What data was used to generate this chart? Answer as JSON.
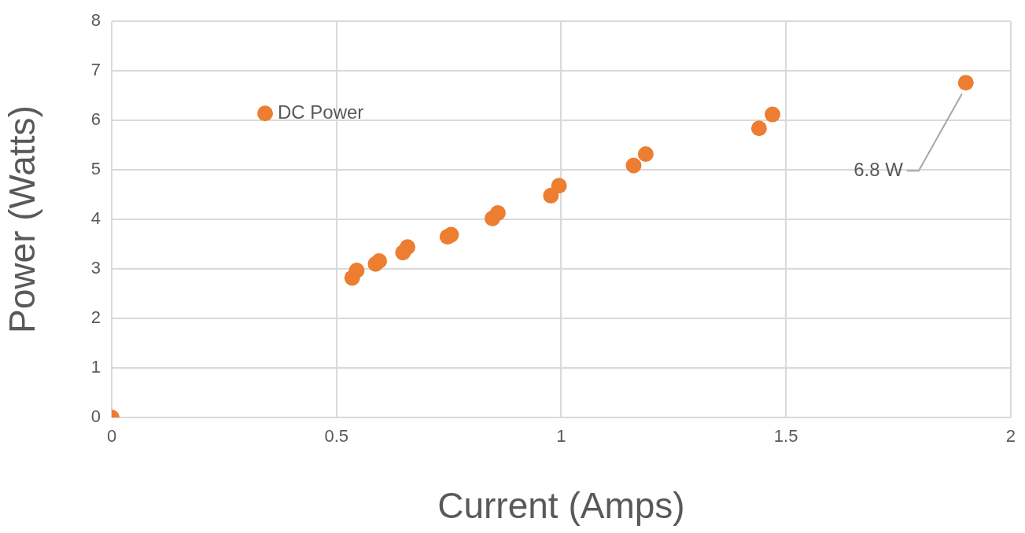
{
  "chart_data": {
    "type": "scatter",
    "xlabel": "Current (Amps)",
    "ylabel": "Power (Watts)",
    "xlim": [
      0,
      2
    ],
    "xticks": [
      0,
      0.5,
      1,
      1.5,
      2
    ],
    "ylim": [
      0,
      8
    ],
    "yticks": [
      0,
      1,
      2,
      3,
      4,
      5,
      6,
      7,
      8
    ],
    "grid": true,
    "legend": "top left",
    "marker": "circle",
    "series": [
      {
        "name": "DC Power",
        "color": "#ed7d31",
        "x": [
          0,
          0.535,
          0.545,
          0.587,
          0.595,
          0.648,
          0.658,
          0.747,
          0.755,
          0.847,
          0.859,
          0.977,
          0.995,
          1.161,
          1.188,
          1.44,
          1.47,
          1.9
        ],
        "values": [
          0,
          2.82,
          2.97,
          3.1,
          3.16,
          3.33,
          3.44,
          3.65,
          3.69,
          4.02,
          4.13,
          4.48,
          4.68,
          5.09,
          5.32,
          5.84,
          6.12,
          6.76
        ]
      }
    ],
    "annotations": [
      "6.8 W"
    ]
  }
}
